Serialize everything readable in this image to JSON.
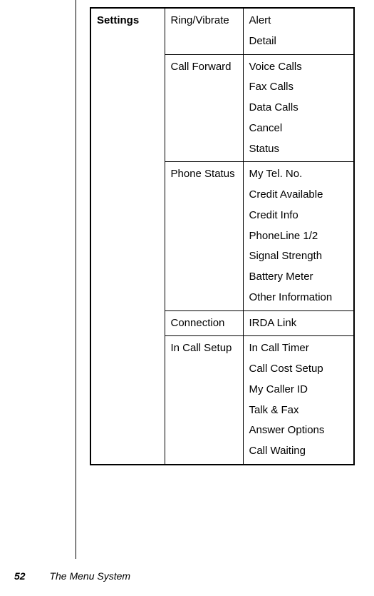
{
  "table": {
    "category": "Settings",
    "sections": [
      {
        "name": "Ring/Vibrate",
        "items": [
          "Alert",
          "Detail"
        ]
      },
      {
        "name": "Call Forward",
        "items": [
          "Voice Calls",
          "Fax Calls",
          "Data Calls",
          "Cancel",
          "Status"
        ]
      },
      {
        "name": "Phone Status",
        "items": [
          "My Tel. No.",
          "Credit Available",
          "Credit Info",
          "PhoneLine 1/2",
          "Signal Strength",
          "Battery Meter",
          "Other Information"
        ]
      },
      {
        "name": "Connection",
        "items": [
          "IRDA Link"
        ]
      },
      {
        "name": "In Call Setup",
        "items": [
          "In Call Timer",
          "Call Cost Setup",
          "My Caller ID",
          "Talk & Fax",
          "Answer Options",
          "Call Waiting"
        ]
      }
    ]
  },
  "footer": {
    "page_number": "52",
    "chapter": "The Menu System"
  }
}
